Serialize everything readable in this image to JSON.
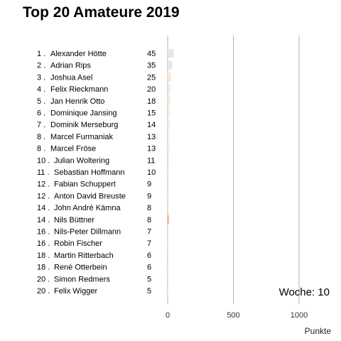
{
  "chart_data": {
    "type": "bar",
    "title": "Top 20 Amateure 2019",
    "xlabel": "Punkte",
    "annotation": "Woche: 10",
    "xlim": [
      0,
      1250
    ],
    "x_ticks": [
      0,
      500,
      1000
    ],
    "x_tick_labels": [
      "0",
      "500",
      "1000"
    ],
    "grid": "vertical",
    "rows": [
      {
        "rank": "1 .",
        "name": "Alexander Hötte",
        "value": 45,
        "color": "#e6e6e6"
      },
      {
        "rank": "2 .",
        "name": "Adrian Rips",
        "value": 35,
        "color": "#e6e6e6"
      },
      {
        "rank": "3 .",
        "name": "Joshua Asel",
        "value": 25,
        "color": "#fde6d4"
      },
      {
        "rank": "4 .",
        "name": "Felix Rieckmann",
        "value": 20,
        "color": "#ebebeb"
      },
      {
        "rank": "5 .",
        "name": "Jan Henrik Otto",
        "value": 18,
        "color": "#fde6d4"
      },
      {
        "rank": "6 .",
        "name": "Dominique Jansing",
        "value": 15,
        "color": "#ededed"
      },
      {
        "rank": "7 .",
        "name": "Dominik Merseburg",
        "value": 14,
        "color": "#fde6d4"
      },
      {
        "rank": "8 .",
        "name": "Marcel Furmaniak",
        "value": 13,
        "color": "#ededed"
      },
      {
        "rank": "8 .",
        "name": "Marcel Fröse",
        "value": 13,
        "color": "#ededed"
      },
      {
        "rank": "10 .",
        "name": "Julian Woltering",
        "value": 11,
        "color": "#ededed"
      },
      {
        "rank": "11 .",
        "name": "Sebastian Hoffmann",
        "value": 10,
        "color": "#ededed"
      },
      {
        "rank": "12 .",
        "name": "Fabian Schuppert",
        "value": 9,
        "color": "#ededed"
      },
      {
        "rank": "12 .",
        "name": "Anton David Breuste",
        "value": 9,
        "color": "#ededed"
      },
      {
        "rank": "14 .",
        "name": "John André Kämna",
        "value": 8,
        "color": "#ededed"
      },
      {
        "rank": "14 .",
        "name": "Nils Büttner",
        "value": 8,
        "color": "#f5a07a"
      },
      {
        "rank": "16 .",
        "name": "Nils-Peter Dillmann",
        "value": 7,
        "color": "#ededed"
      },
      {
        "rank": "16 .",
        "name": "Robin Fischer",
        "value": 7,
        "color": "#fde6d4"
      },
      {
        "rank": "18 .",
        "name": "Martin Ritterbach",
        "value": 6,
        "color": "#ededed"
      },
      {
        "rank": "18 .",
        "name": "René Otterbein",
        "value": 6,
        "color": "#ededed"
      },
      {
        "rank": "20 .",
        "name": "Simon Redmers",
        "value": 5,
        "color": "#fde6d4"
      },
      {
        "rank": "20 .",
        "name": "Felix Wigger",
        "value": 5,
        "color": "#ededed"
      }
    ]
  }
}
